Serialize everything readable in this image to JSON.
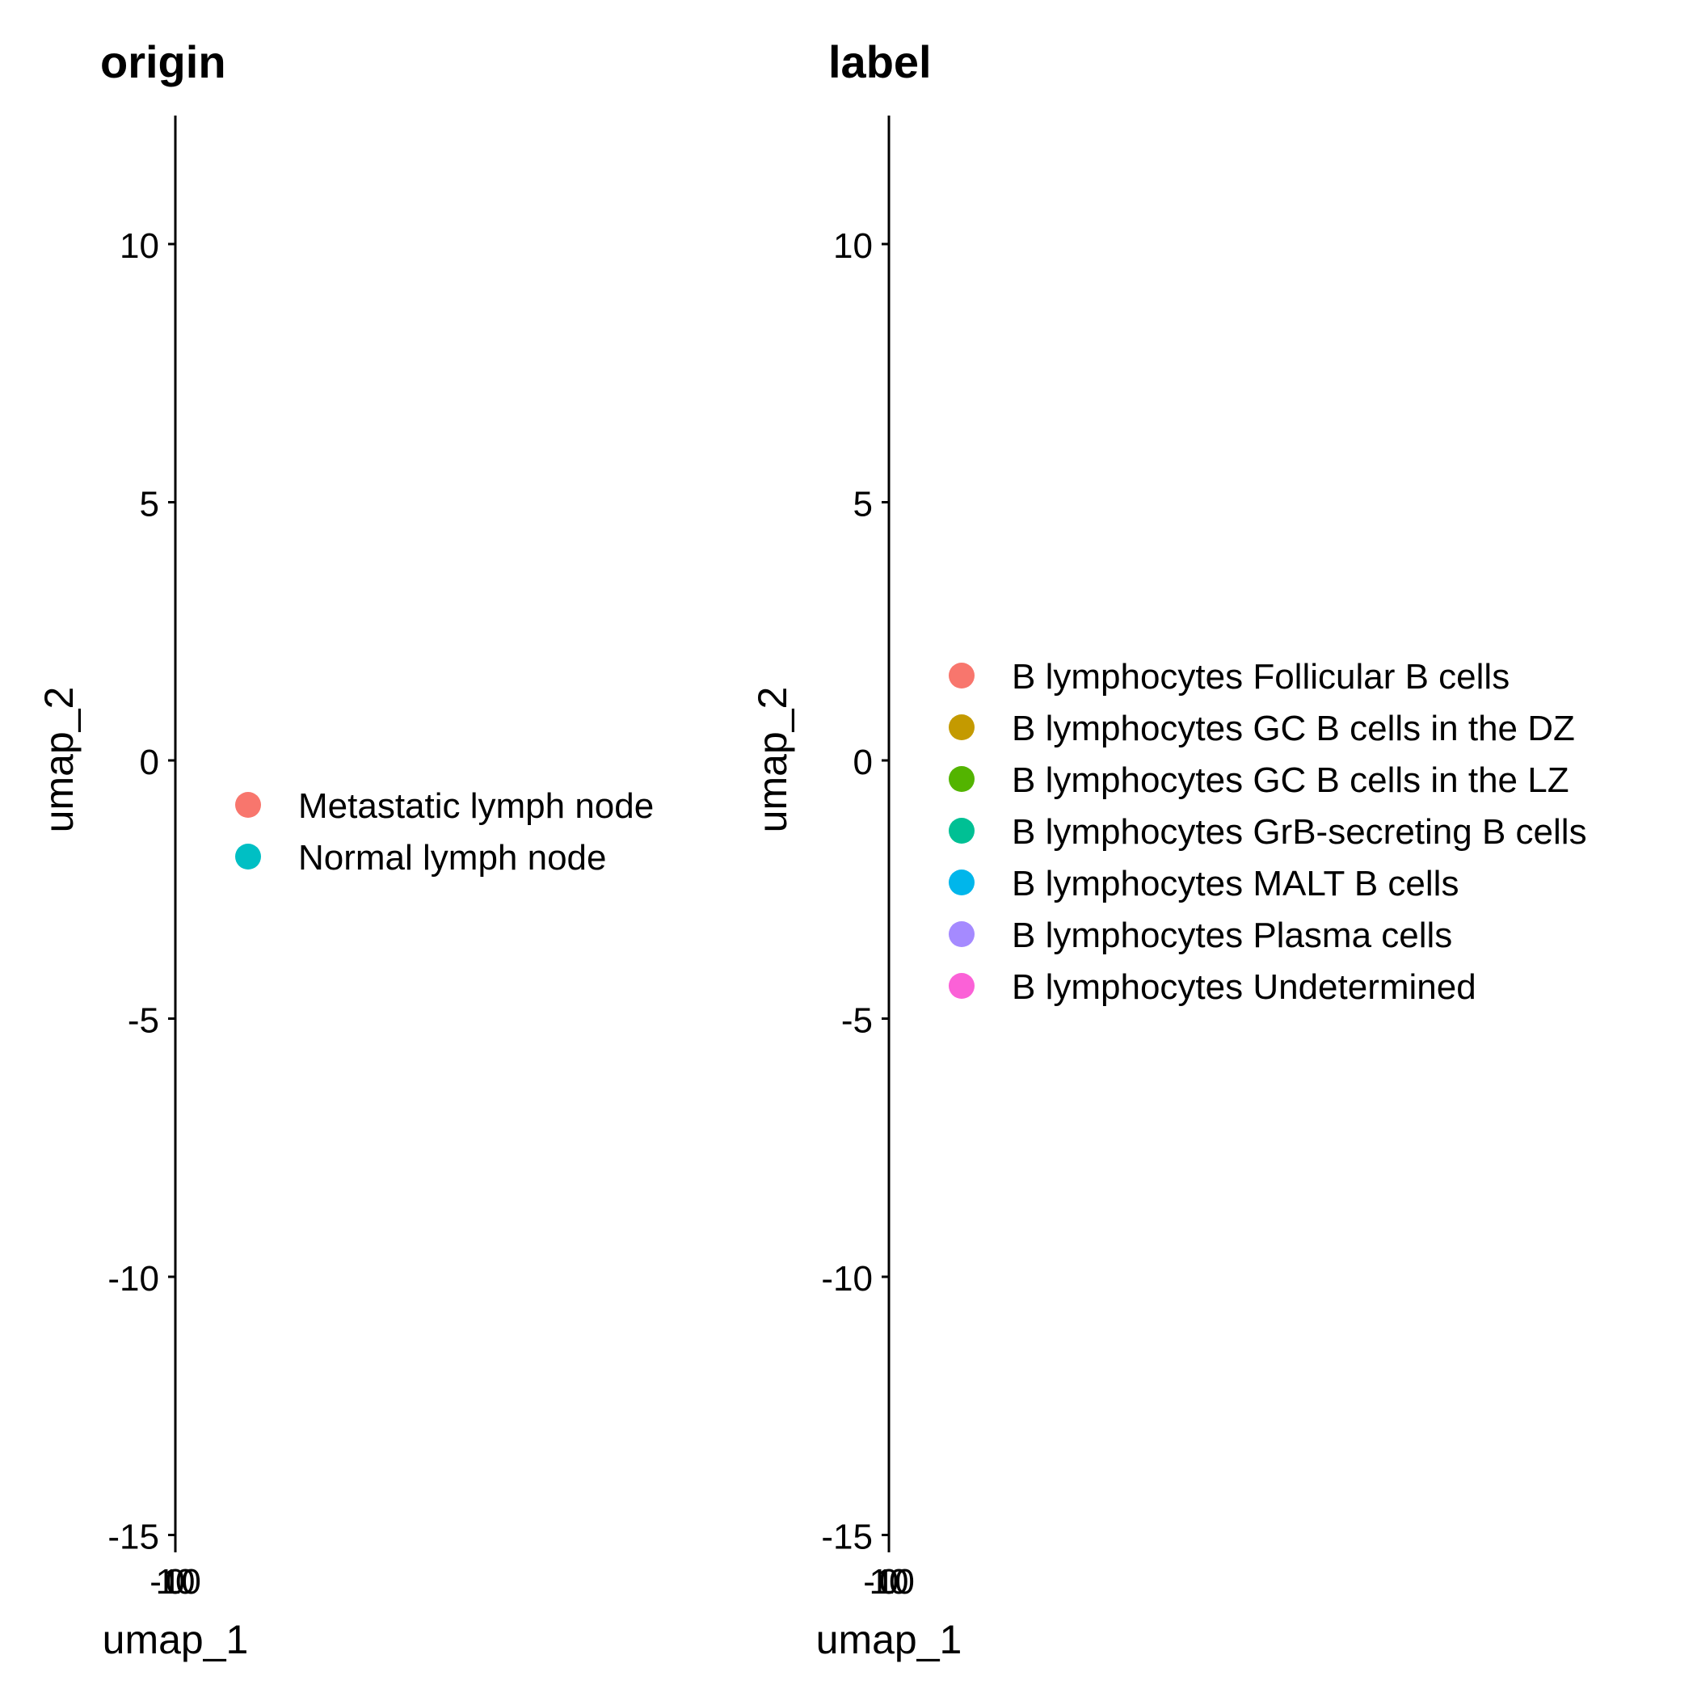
{
  "chart_data": [
    {
      "type": "scatter",
      "title": "origin",
      "xlabel": "umap_1",
      "ylabel": "umap_2",
      "ylim": [
        -15.5,
        12.5
      ],
      "y_ticks": [
        "10",
        "5",
        "0",
        "-5",
        "-10",
        "-15"
      ],
      "y_tick_values": [
        10,
        5,
        0,
        -5,
        -10,
        -15
      ],
      "x_ticks": [
        "-10",
        "0",
        "10"
      ],
      "x_tick_values": [
        -10,
        0,
        10
      ],
      "grid": false,
      "legend_placement": "right",
      "legend": [
        {
          "label": "Metastatic lymph node",
          "color": "#F8766D"
        },
        {
          "label": "Normal lymph node",
          "color": "#00BFC4"
        }
      ],
      "series": []
    },
    {
      "type": "scatter",
      "title": "label",
      "xlabel": "umap_1",
      "ylabel": "umap_2",
      "ylim": [
        -15.5,
        12.5
      ],
      "y_ticks": [
        "10",
        "5",
        "0",
        "-5",
        "-10",
        "-15"
      ],
      "y_tick_values": [
        10,
        5,
        0,
        -5,
        -10,
        -15
      ],
      "x_ticks": [
        "-10",
        "0",
        "10"
      ],
      "x_tick_values": [
        -10,
        0,
        10
      ],
      "grid": false,
      "legend_placement": "right",
      "legend": [
        {
          "label": "B lymphocytes Follicular B cells",
          "color": "#F8766D"
        },
        {
          "label": "B lymphocytes GC B cells in the DZ",
          "color": "#C49A00"
        },
        {
          "label": "B lymphocytes GC B cells in the LZ",
          "color": "#53B400"
        },
        {
          "label": "B lymphocytes GrB-secreting B cells",
          "color": "#00C094"
        },
        {
          "label": "B lymphocytes MALT B cells",
          "color": "#00B6EB"
        },
        {
          "label": "B lymphocytes Plasma cells",
          "color": "#A58AFF"
        },
        {
          "label": "B lymphocytes Undetermined",
          "color": "#FB61D7"
        }
      ],
      "series": []
    }
  ]
}
